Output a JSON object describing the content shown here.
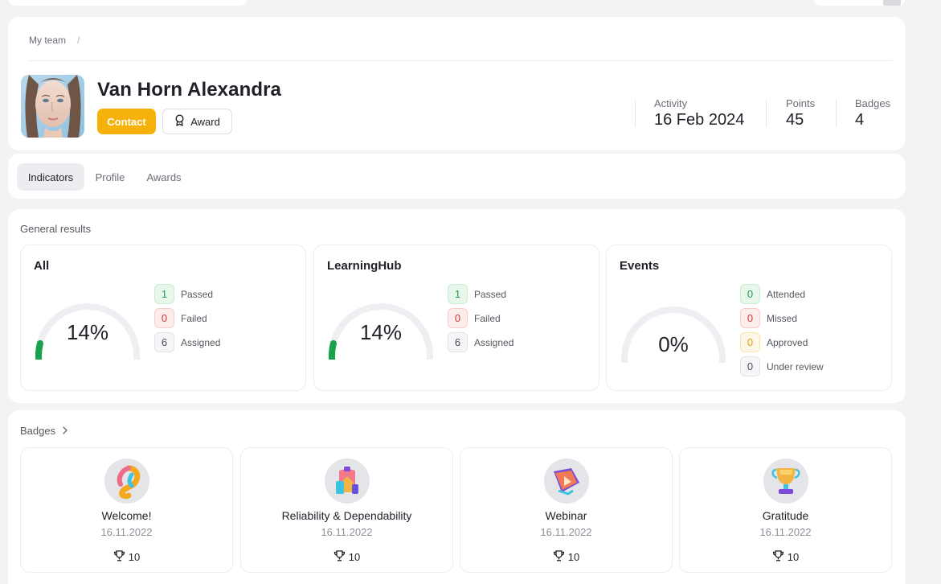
{
  "breadcrumb": {
    "item": "My team",
    "separator": "/"
  },
  "profile": {
    "name": "Van Horn Alexandra",
    "contact_label": "Contact",
    "award_label": "Award"
  },
  "stats": [
    {
      "label": "Activity",
      "value": "16 Feb 2024"
    },
    {
      "label": "Points",
      "value": "45"
    },
    {
      "label": "Badges",
      "value": "4"
    }
  ],
  "tabs": [
    {
      "label": "Indicators",
      "active": true
    },
    {
      "label": "Profile",
      "active": false
    },
    {
      "label": "Awards",
      "active": false
    }
  ],
  "general_results": {
    "title": "General results",
    "panels": [
      {
        "title": "All",
        "percent_label": "14%",
        "percent": 14,
        "legend": [
          {
            "value": "1",
            "label": "Passed",
            "tone": "green"
          },
          {
            "value": "0",
            "label": "Failed",
            "tone": "red"
          },
          {
            "value": "6",
            "label": "Assigned",
            "tone": "gray"
          }
        ]
      },
      {
        "title": "LearningHub",
        "percent_label": "14%",
        "percent": 14,
        "legend": [
          {
            "value": "1",
            "label": "Passed",
            "tone": "green"
          },
          {
            "value": "0",
            "label": "Failed",
            "tone": "red"
          },
          {
            "value": "6",
            "label": "Assigned",
            "tone": "gray"
          }
        ]
      },
      {
        "title": "Events",
        "percent_label": "0%",
        "percent": 0,
        "legend": [
          {
            "value": "0",
            "label": "Attended",
            "tone": "green"
          },
          {
            "value": "0",
            "label": "Missed",
            "tone": "red"
          },
          {
            "value": "0",
            "label": "Approved",
            "tone": "yellow"
          },
          {
            "value": "0",
            "label": "Under review",
            "tone": "gray"
          }
        ]
      }
    ]
  },
  "badges": {
    "title": "Badges",
    "items": [
      {
        "name": "Welcome!",
        "date": "16.11.2022",
        "points": "10",
        "icon": "welcome-badge-icon"
      },
      {
        "name": "Reliability & Dependability",
        "date": "16.11.2022",
        "points": "10",
        "icon": "reliability-badge-icon"
      },
      {
        "name": "Webinar",
        "date": "16.11.2022",
        "points": "10",
        "icon": "webinar-badge-icon"
      },
      {
        "name": "Gratitude",
        "date": "16.11.2022",
        "points": "10",
        "icon": "gratitude-badge-icon"
      }
    ]
  },
  "colors": {
    "accent": "#f6b20a",
    "progress": "#16a34a",
    "track": "#eeeff2"
  }
}
